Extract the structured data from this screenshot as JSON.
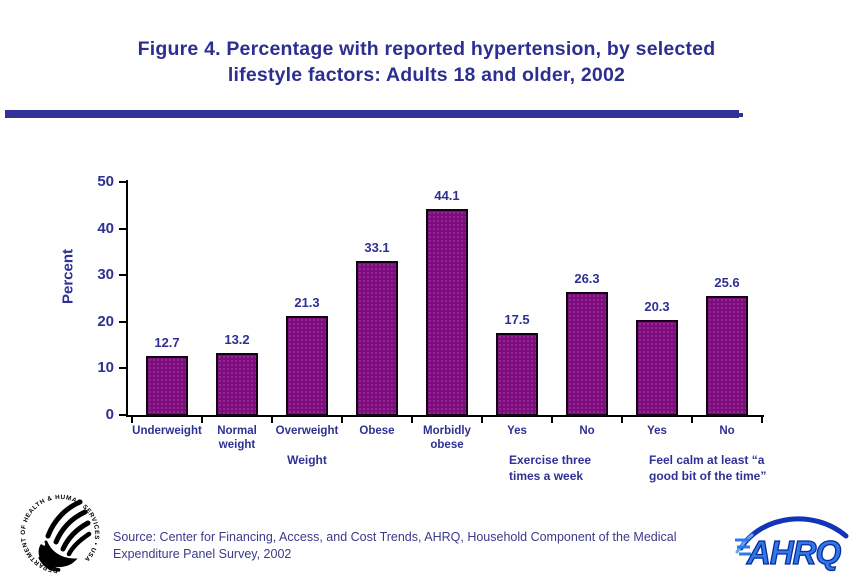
{
  "title": {
    "line1": "Figure 4. Percentage with reported hypertension, by selected",
    "line2": "lifestyle factors: Adults 18 and older, 2002"
  },
  "source": {
    "lines": [
      "Source: Center for Financing, Access, and Cost Trends, AHRQ, Household Component of the Medical",
      "Expenditure Panel Survey, 2002"
    ]
  },
  "chart_data": {
    "type": "bar",
    "title": "Percentage with reported hypertension, by selected lifestyle factors: Adults 18 and older, 2002",
    "xlabel": "",
    "ylabel": "Percent",
    "ylim": [
      0,
      50
    ],
    "yticks": [
      0,
      10,
      20,
      30,
      40,
      50
    ],
    "grid": false,
    "legend": null,
    "categories": [
      "Underweight",
      "Normal weight",
      "Overweight",
      "Obese",
      "Morbidly obese",
      "Yes",
      "No",
      "Yes",
      "No"
    ],
    "values": [
      12.7,
      13.2,
      21.3,
      33.1,
      44.1,
      17.5,
      26.3,
      20.3,
      25.6
    ],
    "value_labels": [
      "12.7",
      "13.2",
      "21.3",
      "33.1",
      "44.1",
      "17.5",
      "26.3",
      "20.3",
      "25.6"
    ],
    "group_labels": [
      {
        "lines": [
          "Weight"
        ],
        "span": [
          0,
          4
        ],
        "align": "center",
        "anchor_slot": 2
      },
      {
        "lines": [
          "Exercise three",
          "times a week"
        ],
        "span": [
          5,
          6
        ],
        "align": "left",
        "anchor_slot": 5
      },
      {
        "lines": [
          "Feel calm at least “a",
          "good bit of the time”"
        ],
        "span": [
          7,
          8
        ],
        "align": "left",
        "anchor_slot": 7
      }
    ],
    "bar_color": "#7D0C7D",
    "bar_border_color": "#000000",
    "text_color": "#2E3192"
  },
  "logos": {
    "hhs_seal_text": "DEPARTMENT OF HEALTH & HUMAN SERVICES • USA",
    "ahrq_text": "AHRQ"
  },
  "colors": {
    "accent_rule": "#32329B",
    "title_text": "#2D2F90",
    "source_text": "#3A3A8C"
  }
}
